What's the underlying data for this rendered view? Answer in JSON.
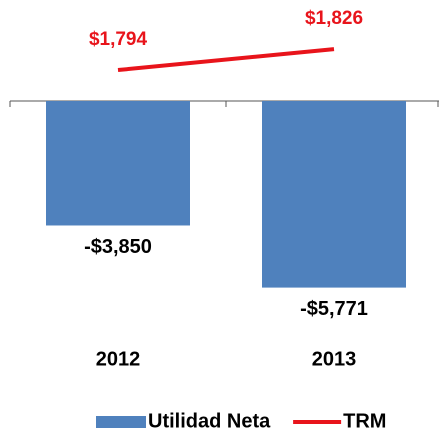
{
  "chart_data": {
    "type": "bar",
    "categories": [
      "2012",
      "2013"
    ],
    "series": [
      {
        "name": "Utilidad Neta",
        "type": "bar",
        "color": "#4f81bd",
        "values": [
          -3850,
          -5771
        ],
        "value_labels": [
          "-$3,850",
          "-$5,771"
        ]
      },
      {
        "name": "TRM",
        "type": "line",
        "axis": "y2",
        "color": "#e8141b",
        "values": [
          1794,
          1826
        ],
        "value_labels": [
          "$1,794",
          "$1,826"
        ]
      }
    ],
    "ylim": [
      -6000,
      3000
    ],
    "y2lim": [
      1450,
      1895
    ],
    "legend": "bottom"
  }
}
